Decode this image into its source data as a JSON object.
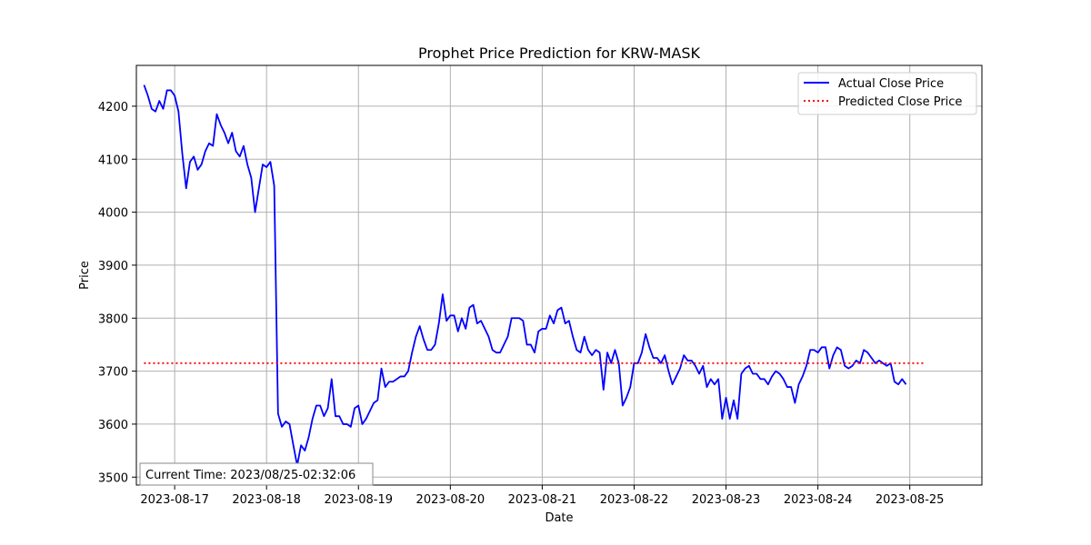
{
  "chart_data": {
    "type": "line",
    "title": "Prophet Price Prediction for KRW-MASK",
    "xlabel": "Date",
    "ylabel": "Price",
    "ylim": [
      3485,
      4277
    ],
    "xlim": [
      "2023-08-16 14:00",
      "2023-08-25 18:50"
    ],
    "x_ticks": [
      "2023-08-17",
      "2023-08-18",
      "2023-08-19",
      "2023-08-20",
      "2023-08-21",
      "2023-08-22",
      "2023-08-23",
      "2023-08-24",
      "2023-08-25"
    ],
    "y_ticks": [
      3500,
      3600,
      3700,
      3800,
      3900,
      4000,
      4100,
      4200
    ],
    "grid": true,
    "legend_position": "top-right",
    "series": [
      {
        "name": "Actual Close Price",
        "color": "#0000ff",
        "style": "solid",
        "start": "2023-08-16 16:00",
        "interval_hours": 1,
        "values": [
          4240,
          4220,
          4195,
          4190,
          4210,
          4195,
          4230,
          4230,
          4220,
          4190,
          4110,
          4045,
          4095,
          4105,
          4080,
          4090,
          4115,
          4130,
          4125,
          4185,
          4165,
          4150,
          4130,
          4150,
          4115,
          4105,
          4125,
          4090,
          4065,
          4000,
          4045,
          4090,
          4085,
          4095,
          4050,
          3620,
          3595,
          3605,
          3600,
          3560,
          3522,
          3560,
          3550,
          3575,
          3610,
          3635,
          3635,
          3615,
          3630,
          3685,
          3615,
          3615,
          3600,
          3600,
          3595,
          3630,
          3635,
          3600,
          3610,
          3625,
          3640,
          3645,
          3705,
          3670,
          3680,
          3680,
          3685,
          3690,
          3690,
          3700,
          3735,
          3765,
          3785,
          3760,
          3740,
          3740,
          3750,
          3790,
          3845,
          3795,
          3805,
          3805,
          3775,
          3800,
          3780,
          3820,
          3825,
          3790,
          3795,
          3780,
          3765,
          3740,
          3735,
          3735,
          3750,
          3765,
          3800,
          3800,
          3800,
          3795,
          3750,
          3750,
          3735,
          3775,
          3780,
          3780,
          3805,
          3790,
          3815,
          3820,
          3790,
          3795,
          3765,
          3740,
          3735,
          3765,
          3740,
          3730,
          3740,
          3735,
          3665,
          3735,
          3715,
          3740,
          3715,
          3635,
          3650,
          3670,
          3715,
          3715,
          3735,
          3770,
          3745,
          3725,
          3725,
          3715,
          3730,
          3700,
          3675,
          3690,
          3705,
          3730,
          3720,
          3720,
          3710,
          3695,
          3710,
          3670,
          3685,
          3675,
          3685,
          3610,
          3650,
          3610,
          3645,
          3610,
          3695,
          3705,
          3710,
          3695,
          3695,
          3685,
          3685,
          3675,
          3690,
          3700,
          3695,
          3685,
          3670,
          3670,
          3640,
          3675,
          3690,
          3710,
          3740,
          3740,
          3735,
          3745,
          3745,
          3705,
          3730,
          3745,
          3740,
          3710,
          3705,
          3710,
          3720,
          3715,
          3740,
          3735,
          3725,
          3715,
          3720,
          3715,
          3710,
          3715,
          3680,
          3675,
          3685,
          3675
        ]
      },
      {
        "name": "Predicted Close Price",
        "color": "#ff0000",
        "style": "dotted",
        "start": "2023-08-16 16:00",
        "end": "2023-08-25 04:00",
        "value": 3715
      }
    ],
    "annotation": {
      "text": "Current Time: 2023/08/25-02:32:06"
    }
  }
}
